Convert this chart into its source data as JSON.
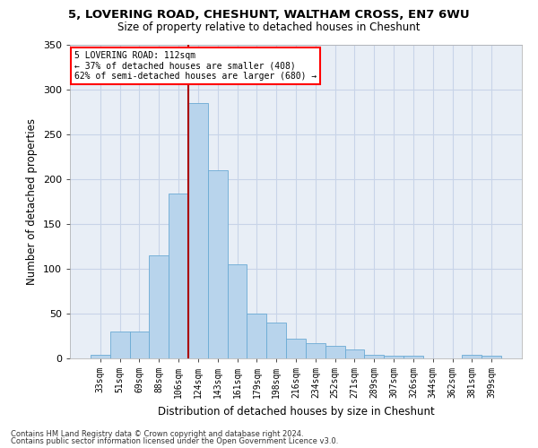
{
  "title1": "5, LOVERING ROAD, CHESHUNT, WALTHAM CROSS, EN7 6WU",
  "title2": "Size of property relative to detached houses in Cheshunt",
  "xlabel": "Distribution of detached houses by size in Cheshunt",
  "ylabel": "Number of detached properties",
  "categories": [
    "33sqm",
    "51sqm",
    "69sqm",
    "88sqm",
    "106sqm",
    "124sqm",
    "143sqm",
    "161sqm",
    "179sqm",
    "198sqm",
    "216sqm",
    "234sqm",
    "252sqm",
    "271sqm",
    "289sqm",
    "307sqm",
    "326sqm",
    "344sqm",
    "362sqm",
    "381sqm",
    "399sqm"
  ],
  "heights": [
    4,
    30,
    30,
    115,
    184,
    285,
    210,
    105,
    50,
    40,
    22,
    17,
    14,
    10,
    4,
    3,
    3,
    0,
    0,
    4,
    3
  ],
  "bar_color": "#b8d4ec",
  "bar_edge_color": "#6aaad4",
  "grid_color": "#c8d4e8",
  "background_color": "#e8eef6",
  "annotation_line1": "5 LOVERING ROAD: 112sqm",
  "annotation_line2": "← 37% of detached houses are smaller (408)",
  "annotation_line3": "62% of semi-detached houses are larger (680) →",
  "annotation_box_color": "white",
  "annotation_box_edge": "red",
  "vline_color": "#aa0000",
  "ylim_max": 350,
  "yticks": [
    0,
    50,
    100,
    150,
    200,
    250,
    300,
    350
  ],
  "footnote1": "Contains HM Land Registry data © Crown copyright and database right 2024.",
  "footnote2": "Contains public sector information licensed under the Open Government Licence v3.0."
}
